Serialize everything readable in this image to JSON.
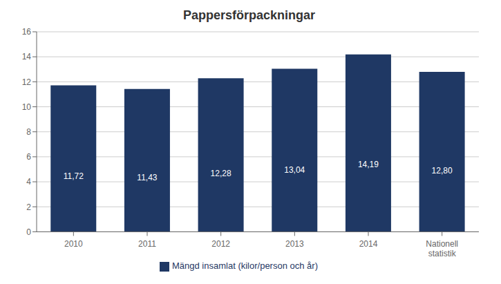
{
  "chart_data": {
    "type": "bar",
    "title": "Pappersförpackningar",
    "categories": [
      "2010",
      "2011",
      "2012",
      "2013",
      "2014",
      "Nationell\nstatistik"
    ],
    "series": [
      {
        "name": "Mängd insamlat (kilor/person och år)",
        "color": "#1F3864",
        "values": [
          11.72,
          11.43,
          12.28,
          13.04,
          14.19,
          12.8
        ],
        "value_labels": [
          "11,72",
          "11,43",
          "12,28",
          "13,04",
          "14,19",
          "12,80"
        ]
      }
    ],
    "ylim": [
      0,
      16
    ],
    "yticks": [
      0,
      2,
      4,
      6,
      8,
      10,
      12,
      14,
      16
    ],
    "grid": true,
    "legend": "bottom",
    "data_labels": true
  }
}
